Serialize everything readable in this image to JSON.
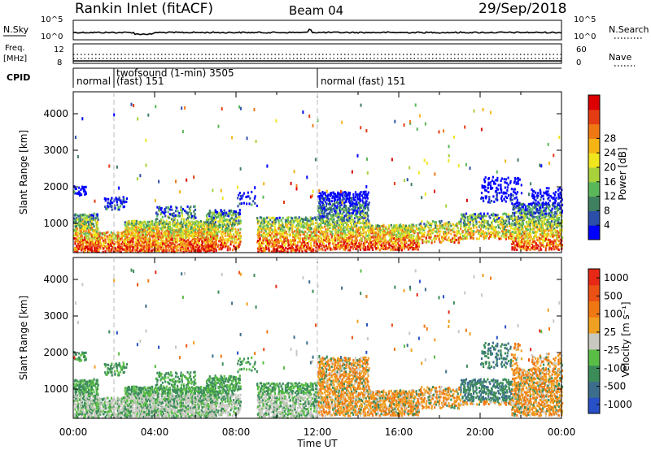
{
  "header": {
    "station": "Rankin Inlet (fitACF)",
    "beam": "Beam 04",
    "date": "29/Sep/2018"
  },
  "nsky_panel": {
    "label": "N.Sky",
    "left_ticks": [
      "10^5",
      "10^0"
    ],
    "right_ticks": [
      "10^5",
      "10^0"
    ],
    "right_label": "N.Search",
    "right_legend_style": "dotted"
  },
  "freq_panel": {
    "label_top": "Freq.",
    "label_bottom": "[MHz]",
    "left_ticks": [
      "12",
      "8"
    ],
    "right_ticks": [
      "60",
      "0"
    ],
    "right_label": "Nave",
    "right_legend_style": "dotted"
  },
  "cpid_panel": {
    "label": "CPID",
    "segments": [
      {
        "start_hour": 0.0,
        "text": "normal"
      },
      {
        "start_hour": 1.75,
        "text": "twofsound (1-min) 3505",
        "text2": "(fast) 151"
      },
      {
        "start_hour": 12.0,
        "text": "normal (fast) 151"
      }
    ]
  },
  "chart_data": [
    {
      "type": "heatmap",
      "title": "",
      "xlabel": "",
      "ylabel": "Slant Range [km]",
      "x_range_hours": [
        0,
        24
      ],
      "ylim": [
        200,
        4600
      ],
      "y_ticks": [
        1000,
        2000,
        3000,
        4000
      ],
      "colorbar": {
        "label": "Power [dB]",
        "ticks": [
          "4",
          "8",
          "12",
          "16",
          "20",
          "24",
          "28"
        ],
        "colors": [
          "#0000ff",
          "#2b4fa8",
          "#3f8060",
          "#5ab85a",
          "#a8d13c",
          "#f0e61e",
          "#f5b414",
          "#f07814",
          "#e63c14",
          "#dc0000"
        ]
      },
      "mode_change_hours": [
        1.75,
        12.0
      ]
    },
    {
      "type": "heatmap",
      "title": "",
      "xlabel": "Time UT",
      "ylabel": "Slant Range [km]",
      "x_range_hours": [
        0,
        24
      ],
      "ylim": [
        200,
        4600
      ],
      "y_ticks": [
        1000,
        2000,
        3000,
        4000
      ],
      "x_ticks": [
        "00:00",
        "04:00",
        "08:00",
        "12:00",
        "16:00",
        "20:00",
        "00:00"
      ],
      "colorbar": {
        "label": "Velocity [m s⁻¹]",
        "ticks": [
          "1000",
          "500",
          "100",
          "25",
          "-25",
          "-100",
          "-500",
          "-1000"
        ],
        "colors": [
          "#2850c8",
          "#3c6e8c",
          "#3c8c5a",
          "#5abe46",
          "#c8c8c0",
          "#f0a020",
          "#f07814",
          "#eb5014",
          "#e62814"
        ]
      },
      "mode_change_hours": [
        1.75,
        12.0
      ]
    }
  ]
}
